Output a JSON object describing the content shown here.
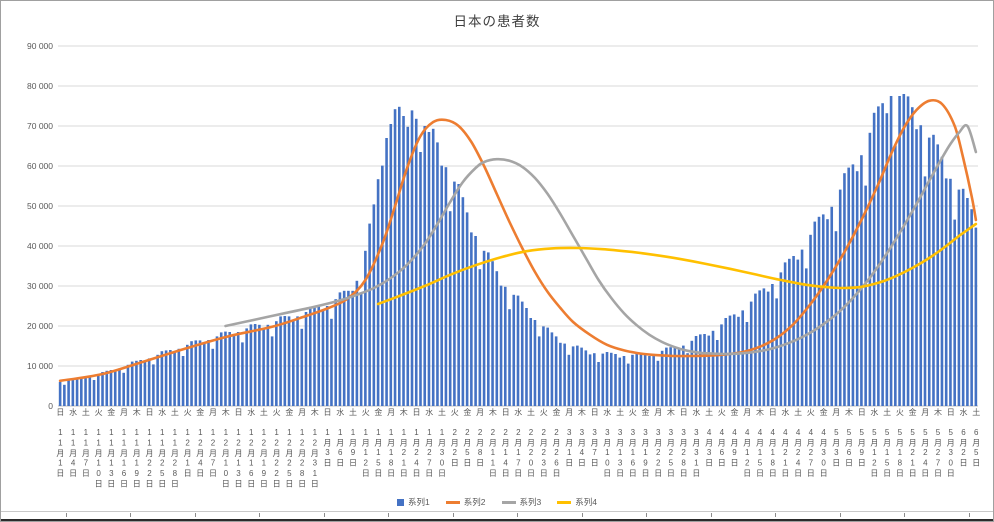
{
  "chart": {
    "title": "日本の患者数",
    "colors": {
      "bar": "#4472C4",
      "line_series2": "#ED7D31",
      "line_series3": "#A5A5A5",
      "line_series4": "#FFC000",
      "gridline": "#D9D9D9",
      "axis_line": "#BFBFBF",
      "axis_label_text": "#595959",
      "title_text": "#404040"
    },
    "y_axis": {
      "min": 0,
      "max": 90000,
      "step": 10000,
      "tick_labels": [
        "0",
        "10 000",
        "20 000",
        "30 000",
        "40 000",
        "50 000",
        "60 000",
        "70 000",
        "80 000",
        "90 000"
      ]
    }
  },
  "chart_data": {
    "type": "combo",
    "title": "日本の患者数",
    "x_unit": "day",
    "total_days": 217,
    "x_range": [
      "11月1日",
      "6月5日"
    ],
    "x_tick_every_days": 3,
    "ylim": [
      0,
      90000
    ],
    "y_tick_step": 10000,
    "grid": true,
    "legend_position": "bottom",
    "x_tick_labels": [
      "日 11月1日",
      "水 11月4日",
      "土 11月7日",
      "火 11月10日",
      "金 11月13日",
      "月 11月16日",
      "木 11月19日",
      "日 11月22日",
      "水 11月25日",
      "土 11月28日",
      "火 12月1日",
      "金 12月4日",
      "月 12月7日",
      "木 12月10日",
      "日 12月13日",
      "水 12月16日",
      "土 12月19日",
      "火 12月22日",
      "金 12月25日",
      "月 12月28日",
      "木 12月31日",
      "日 1月3日",
      "水 1月6日",
      "土 1月9日",
      "火 1月12日",
      "金 1月15日",
      "月 1月18日",
      "木 1月21日",
      "日 1月24日",
      "水 1月27日",
      "土 1月30日",
      "火 2月2日",
      "金 2月5日",
      "月 2月8日",
      "木 2月11日",
      "日 2月14日",
      "水 2月17日",
      "土 2月20日",
      "火 2月23日",
      "金 2月26日",
      "月 3月1日",
      "木 3月4日",
      "日 3月7日",
      "水 3月10日",
      "土 3月13日",
      "火 3月16日",
      "金 3月19日",
      "月 3月22日",
      "木 3月25日",
      "日 3月28日",
      "水 3月31日",
      "土 4月3日",
      "火 4月6日",
      "金 4月9日",
      "月 4月12日",
      "木 4月15日",
      "日 4月18日",
      "水 4月21日",
      "土 4月24日",
      "火 4月27日",
      "金 4月30日",
      "月 5月3日",
      "木 5月6日",
      "日 5月9日",
      "水 5月12日",
      "土 5月15日",
      "火 5月18日",
      "金 5月21日",
      "月 5月24日",
      "木 5月27日",
      "日 5月30日",
      "水 6月2日",
      "土 6月5日"
    ],
    "series": [
      {
        "name": "系列1",
        "type": "bar",
        "color": "#4472C4",
        "values": [
          6000,
          5300,
          6500,
          7000,
          7100,
          7200,
          7000,
          7400,
          6500,
          8000,
          8500,
          8800,
          9000,
          8800,
          9400,
          8300,
          10300,
          11100,
          11300,
          11500,
          11200,
          11900,
          10400,
          12800,
          13700,
          13900,
          14000,
          13500,
          14300,
          12500,
          15300,
          16200,
          16400,
          16400,
          15700,
          16500,
          14300,
          17400,
          18400,
          18600,
          18500,
          17700,
          18500,
          15900,
          19400,
          20400,
          20500,
          20300,
          19400,
          20300,
          17400,
          21200,
          22400,
          22500,
          22400,
          21400,
          22400,
          19300,
          23500,
          24800,
          25000,
          24900,
          23900,
          25000,
          21800,
          26700,
          28400,
          28800,
          28800,
          28800,
          31300,
          28100,
          38800,
          45600,
          50400,
          56700,
          60100,
          67000,
          70500,
          74200,
          74800,
          72500,
          69800,
          73900,
          71800,
          63500,
          70000,
          68500,
          69300,
          65900,
          60100,
          59700,
          48700,
          56100,
          55500,
          52200,
          48400,
          43400,
          42500,
          34200,
          38800,
          38400,
          36200,
          33700,
          30100,
          29800,
          24200,
          27800,
          27600,
          26100,
          24500,
          22000,
          21500,
          17400,
          19900,
          19600,
          18400,
          17400,
          15800,
          15600,
          12800,
          14900,
          15100,
          14600,
          13900,
          12900,
          13200,
          11000,
          13100,
          13500,
          13300,
          13000,
          12100,
          12500,
          10600,
          12800,
          13300,
          13300,
          13100,
          12500,
          13000,
          11300,
          13800,
          14600,
          14700,
          14800,
          14300,
          15100,
          13200,
          16300,
          17500,
          17900,
          18000,
          17600,
          18800,
          16500,
          20400,
          22000,
          22600,
          22900,
          22300,
          23900,
          21000,
          26100,
          28100,
          28900,
          29400,
          28600,
          30500,
          26900,
          33400,
          35900,
          36800,
          37500,
          36600,
          39100,
          34400,
          42800,
          46100,
          47300,
          47900,
          46700,
          49800,
          43700,
          54100,
          58200,
          59600,
          60400,
          58700,
          62700,
          55100,
          68300,
          73300,
          74900,
          75700,
          73200,
          77500,
          65200,
          77500,
          78000,
          77400,
          74700,
          69200,
          70200,
          57400,
          67100,
          67800,
          65400,
          62300,
          56900,
          56800,
          46600,
          54100,
          54300,
          52000,
          49200,
          44600
        ]
      },
      {
        "name": "系列2",
        "type": "line",
        "color": "#ED7D31",
        "points": [
          [
            0,
            6300
          ],
          [
            10,
            8000
          ],
          [
            20,
            11200
          ],
          [
            30,
            14500
          ],
          [
            40,
            17500
          ],
          [
            50,
            19800
          ],
          [
            58,
            22500
          ],
          [
            64,
            24800
          ],
          [
            68,
            27000
          ],
          [
            72,
            31500
          ],
          [
            76,
            40500
          ],
          [
            79,
            50000
          ],
          [
            82,
            60000
          ],
          [
            85,
            67500
          ],
          [
            88,
            71000
          ],
          [
            91,
            71500
          ],
          [
            94,
            70000
          ],
          [
            97,
            66000
          ],
          [
            100,
            60000
          ],
          [
            103,
            53000
          ],
          [
            106,
            46000
          ],
          [
            109,
            39500
          ],
          [
            112,
            33500
          ],
          [
            115,
            28500
          ],
          [
            118,
            24500
          ],
          [
            121,
            21000
          ],
          [
            125,
            17800
          ],
          [
            129,
            15300
          ],
          [
            133,
            13900
          ],
          [
            137,
            13100
          ],
          [
            141,
            12700
          ],
          [
            145,
            12500
          ],
          [
            149,
            12500
          ],
          [
            153,
            12600
          ],
          [
            157,
            12900
          ],
          [
            161,
            13500
          ],
          [
            165,
            14800
          ],
          [
            169,
            17000
          ],
          [
            173,
            20500
          ],
          [
            177,
            25500
          ],
          [
            181,
            31500
          ],
          [
            185,
            38500
          ],
          [
            189,
            46500
          ],
          [
            193,
            55500
          ],
          [
            196,
            63000
          ],
          [
            199,
            69500
          ],
          [
            202,
            74000
          ],
          [
            205,
            76300
          ],
          [
            208,
            75500
          ],
          [
            211,
            70000
          ],
          [
            213,
            62000
          ],
          [
            215,
            52500
          ],
          [
            216,
            46500
          ]
        ]
      },
      {
        "name": "系列3",
        "type": "line",
        "color": "#A5A5A5",
        "points": [
          [
            39,
            20000
          ],
          [
            46,
            21600
          ],
          [
            53,
            23200
          ],
          [
            60,
            24800
          ],
          [
            66,
            26400
          ],
          [
            70,
            27800
          ],
          [
            74,
            29500
          ],
          [
            78,
            32000
          ],
          [
            82,
            35500
          ],
          [
            86,
            40500
          ],
          [
            89,
            45500
          ],
          [
            92,
            51000
          ],
          [
            95,
            56000
          ],
          [
            98,
            59500
          ],
          [
            100,
            61000
          ],
          [
            103,
            61700
          ],
          [
            106,
            61300
          ],
          [
            109,
            59800
          ],
          [
            112,
            57000
          ],
          [
            115,
            53000
          ],
          [
            118,
            48000
          ],
          [
            121,
            42500
          ],
          [
            124,
            37000
          ],
          [
            127,
            31500
          ],
          [
            130,
            27000
          ],
          [
            133,
            23200
          ],
          [
            136,
            20200
          ],
          [
            139,
            17800
          ],
          [
            142,
            16000
          ],
          [
            145,
            14700
          ],
          [
            148,
            13800
          ],
          [
            151,
            13300
          ],
          [
            154,
            13100
          ],
          [
            157,
            13000
          ],
          [
            160,
            13100
          ],
          [
            163,
            13400
          ],
          [
            166,
            13900
          ],
          [
            169,
            14700
          ],
          [
            172,
            15800
          ],
          [
            175,
            17200
          ],
          [
            178,
            19000
          ],
          [
            181,
            21200
          ],
          [
            184,
            23800
          ],
          [
            187,
            27000
          ],
          [
            190,
            30700
          ],
          [
            193,
            35000
          ],
          [
            196,
            39800
          ],
          [
            199,
            45000
          ],
          [
            202,
            50500
          ],
          [
            205,
            56300
          ],
          [
            208,
            62000
          ],
          [
            210,
            65500
          ],
          [
            212,
            68300
          ],
          [
            214,
            70000
          ],
          [
            216,
            63500
          ]
        ]
      },
      {
        "name": "系列4",
        "type": "line",
        "color": "#FFC000",
        "points": [
          [
            75,
            25500
          ],
          [
            80,
            27500
          ],
          [
            86,
            30000
          ],
          [
            92,
            32800
          ],
          [
            98,
            35200
          ],
          [
            104,
            37200
          ],
          [
            110,
            38700
          ],
          [
            116,
            39400
          ],
          [
            122,
            39500
          ],
          [
            128,
            39200
          ],
          [
            134,
            38600
          ],
          [
            140,
            37800
          ],
          [
            146,
            36800
          ],
          [
            152,
            35600
          ],
          [
            158,
            34300
          ],
          [
            164,
            32900
          ],
          [
            170,
            31500
          ],
          [
            176,
            30300
          ],
          [
            181,
            29700
          ],
          [
            185,
            29500
          ],
          [
            189,
            29800
          ],
          [
            193,
            30800
          ],
          [
            197,
            32400
          ],
          [
            201,
            34500
          ],
          [
            205,
            37000
          ],
          [
            209,
            40000
          ],
          [
            212,
            42500
          ],
          [
            214,
            44000
          ],
          [
            216,
            45500
          ]
        ]
      }
    ]
  }
}
